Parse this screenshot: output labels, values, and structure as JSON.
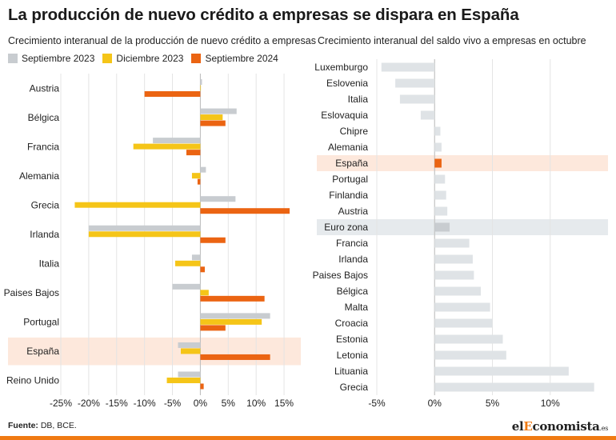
{
  "header": {
    "title": "La producción de nuevo crédito a empresas se dispara en España"
  },
  "footer": {
    "source_label": "Fuente:",
    "source_text": "DB, BCE.",
    "brand_prefix": "el",
    "brand_highlight": "E",
    "brand_suffix": "conomista",
    "brand_tld": ".es"
  },
  "colors": {
    "sep2023": "#c8ccd0",
    "dic2023": "#f5c518",
    "sep2024": "#eb6412",
    "highlight_spain": "#fde8dc",
    "highlight_eurozone": "#e6eaed",
    "right_bar": "#dfe3e6",
    "right_bar_spain": "#eb6412",
    "right_bar_eurozone": "#c8ccd0"
  },
  "chart_data": [
    {
      "type": "bar",
      "orientation": "horizontal",
      "subtitle": "Crecimiento interanual de la producción de nuevo crédito a empresas",
      "categories": [
        "Austria",
        "Bélgica",
        "Francia",
        "Alemania",
        "Grecia",
        "Irlanda",
        "Italia",
        "Paises Bajos",
        "Portugal",
        "España",
        "Reino Unido"
      ],
      "series": [
        {
          "name": "Septiembre 2023",
          "values": [
            0.3,
            6.5,
            -8.5,
            1.0,
            6.3,
            -20.0,
            -1.5,
            -5.0,
            12.5,
            -4.0,
            -4.0
          ]
        },
        {
          "name": "Diciembre 2023",
          "values": [
            0.1,
            4.0,
            -12.0,
            -1.5,
            -22.5,
            -20.0,
            -4.5,
            1.5,
            11.0,
            -3.5,
            -6.0
          ]
        },
        {
          "name": "Septiembre 2024",
          "values": [
            -10.0,
            4.5,
            -2.5,
            -0.5,
            16.0,
            4.5,
            0.8,
            11.5,
            4.5,
            12.5,
            0.6
          ]
        }
      ],
      "highlight": "España",
      "xlim": [
        -25,
        18
      ],
      "xticks": [
        -25,
        -20,
        -15,
        -10,
        -5,
        0,
        5,
        10,
        15
      ],
      "xtick_labels": [
        "-25%",
        "-20%",
        "-15%",
        "-10%",
        "-5%",
        "0%",
        "5%",
        "10%",
        "15%"
      ],
      "grid": true
    },
    {
      "type": "bar",
      "orientation": "horizontal",
      "subtitle": "Crecimiento interanual del saldo vivo a empresas en octubre",
      "categories": [
        "Luxemburgo",
        "Eslovenia",
        "Italia",
        "Eslovaquia",
        "Chipre",
        "Alemania",
        "España",
        "Portugal",
        "Finlandia",
        "Austria",
        "Euro zona",
        "Francia",
        "Irlanda",
        "Paises Bajos",
        "Bélgica",
        "Malta",
        "Croacia",
        "Estonia",
        "Letonia",
        "Lituania",
        "Grecia"
      ],
      "values": [
        -4.6,
        -3.4,
        -3.0,
        -1.2,
        0.5,
        0.6,
        0.6,
        0.9,
        1.0,
        1.1,
        1.3,
        3.0,
        3.3,
        3.4,
        4.0,
        4.8,
        5.0,
        5.9,
        6.2,
        11.6,
        13.8
      ],
      "highlight": [
        "España",
        "Euro zona"
      ],
      "xlim": [
        -5,
        15
      ],
      "xticks": [
        -5,
        0,
        5,
        10
      ],
      "xtick_labels": [
        "-5%",
        "0%",
        "5%",
        "10%"
      ],
      "grid": true
    }
  ]
}
